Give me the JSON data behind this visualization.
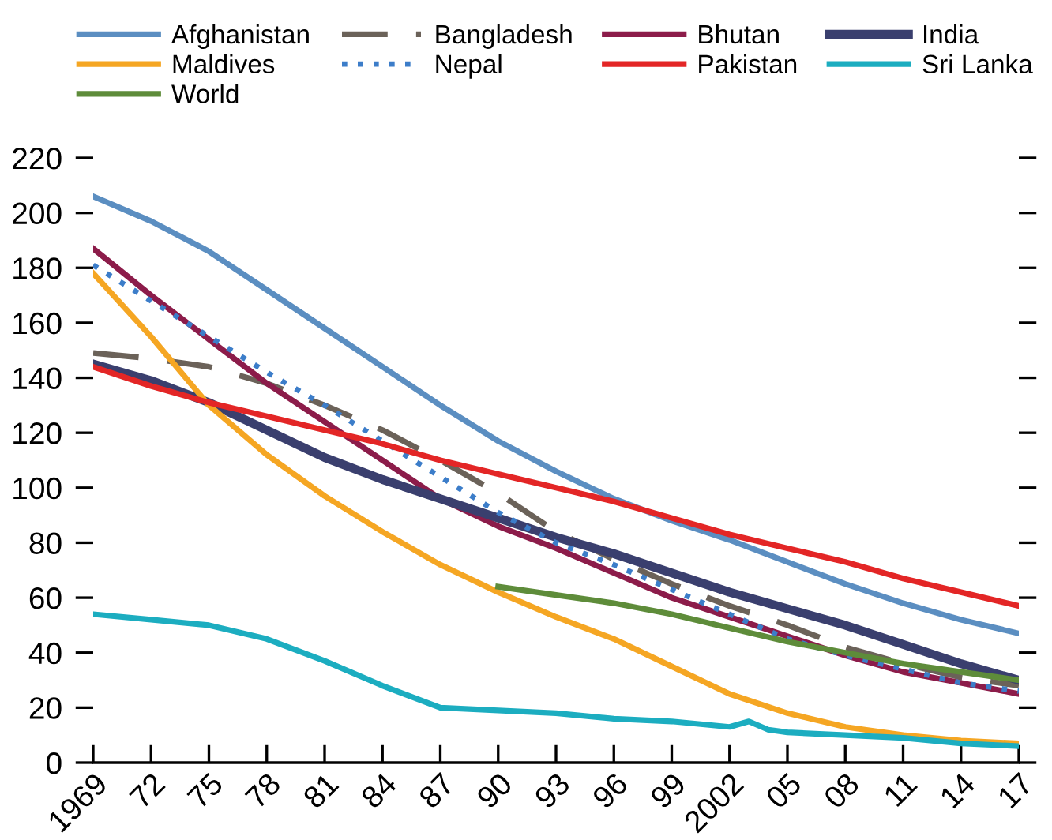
{
  "chart_data": {
    "type": "line",
    "x": [
      1969,
      1972,
      1975,
      1978,
      1981,
      1984,
      1987,
      1990,
      1993,
      1996,
      1999,
      2002,
      2005,
      2008,
      2011,
      2014,
      2017
    ],
    "series": [
      {
        "name": "Afghanistan",
        "color": "#5b8ec1",
        "line_style": "solid",
        "values": [
          206,
          197,
          186,
          172,
          158,
          144,
          130,
          117,
          106,
          96,
          88,
          81,
          73,
          65,
          58,
          52,
          47
        ]
      },
      {
        "name": "Bangladesh",
        "color": "#6b6259",
        "line_style": "dashed",
        "values": [
          149,
          147,
          144,
          138,
          130,
          121,
          110,
          98,
          84,
          74,
          65,
          57,
          50,
          42,
          36,
          31,
          28
        ]
      },
      {
        "name": "Bhutan",
        "color": "#8c1c4a",
        "line_style": "solid",
        "values": [
          187,
          170,
          154,
          138,
          124,
          110,
          96,
          86,
          78,
          69,
          60,
          53,
          46,
          39,
          33,
          29,
          25
        ]
      },
      {
        "name": "India",
        "color": "#3a3f6e",
        "line_style": "solid",
        "values": [
          145,
          139,
          131,
          121,
          111,
          103,
          96,
          89,
          82,
          76,
          69,
          62,
          56,
          50,
          43,
          36,
          30
        ]
      },
      {
        "name": "Maldives",
        "color": "#f5a623",
        "line_style": "solid",
        "values": [
          178,
          155,
          130,
          112,
          97,
          84,
          72,
          62,
          53,
          45,
          35,
          25,
          18,
          13,
          10,
          8,
          7
        ]
      },
      {
        "name": "Nepal",
        "color": "#3c7dc9",
        "line_style": "dotted",
        "values": [
          181,
          168,
          155,
          142,
          130,
          117,
          104,
          91,
          80,
          72,
          63,
          54,
          45,
          39,
          34,
          29,
          26
        ]
      },
      {
        "name": "Pakistan",
        "color": "#e32626",
        "line_style": "solid",
        "values": [
          144,
          137,
          131,
          126,
          121,
          116,
          110,
          105,
          100,
          95,
          89,
          83,
          78,
          73,
          67,
          62,
          57
        ]
      },
      {
        "name": "Sri Lanka",
        "color": "#1cadc0",
        "line_style": "solid",
        "x": [
          1969,
          1972,
          1975,
          1978,
          1981,
          1984,
          1987,
          1990,
          1993,
          1996,
          1999,
          2002,
          2003,
          2004,
          2005,
          2008,
          2011,
          2014,
          2017
        ],
        "values": [
          54,
          52,
          50,
          45,
          37,
          28,
          20,
          19,
          18,
          16,
          15,
          13,
          15,
          12,
          11,
          10,
          9,
          7,
          6
        ]
      },
      {
        "name": "World",
        "color": "#5e8c3a",
        "line_style": "solid",
        "x": [
          1990,
          1993,
          1996,
          1999,
          2002,
          2005,
          2008,
          2011,
          2014,
          2017
        ],
        "values": [
          64,
          61,
          58,
          54,
          49,
          44,
          40,
          36,
          33,
          30
        ]
      }
    ],
    "xlim": [
      1969,
      2017
    ],
    "xticks": [
      {
        "value": 1969,
        "label": "1969"
      },
      {
        "value": 1972,
        "label": "72"
      },
      {
        "value": 1975,
        "label": "75"
      },
      {
        "value": 1978,
        "label": "78"
      },
      {
        "value": 1981,
        "label": "81"
      },
      {
        "value": 1984,
        "label": "84"
      },
      {
        "value": 1987,
        "label": "87"
      },
      {
        "value": 1990,
        "label": "90"
      },
      {
        "value": 1993,
        "label": "93"
      },
      {
        "value": 1996,
        "label": "96"
      },
      {
        "value": 1999,
        "label": "99"
      },
      {
        "value": 2002,
        "label": "2002"
      },
      {
        "value": 2005,
        "label": "05"
      },
      {
        "value": 2008,
        "label": "08"
      },
      {
        "value": 2011,
        "label": "11"
      },
      {
        "value": 2014,
        "label": "14"
      },
      {
        "value": 2017,
        "label": "17"
      }
    ],
    "ylim": [
      0,
      220
    ],
    "yticks": [
      0,
      20,
      40,
      60,
      80,
      100,
      120,
      140,
      160,
      180,
      200,
      220
    ],
    "grid": false,
    "legend": "top"
  }
}
